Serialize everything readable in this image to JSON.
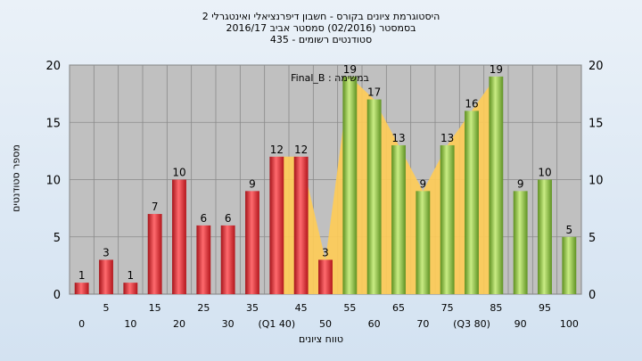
{
  "chart_data": {
    "type": "bar",
    "title_lines": [
      "היסטוגרמת ציונים בקורס - חשבון דיפרנציאלי ואינטגרלי 2",
      "בסמסטר  (02/2016)  סמסטר אביב 2016/17",
      "סטודנטים רשומים - 435"
    ],
    "xlabel": "טווח ציונים",
    "ylabel": "מספר סטודנטים",
    "annotation": "Final_B : במשימה",
    "ylim": [
      0,
      20
    ],
    "y_ticks": [
      "0",
      "5",
      "10",
      "15",
      "20"
    ],
    "categories": [
      "0",
      "5",
      "10",
      "15",
      "20",
      "25",
      "30",
      "35",
      "40",
      "45",
      "50",
      "55",
      "60",
      "65",
      "70",
      "75",
      "80",
      "85",
      "90",
      "95",
      "100"
    ],
    "x_tick_labels": [
      "0",
      "5",
      "10",
      "15",
      "20",
      "25",
      "30",
      "35",
      "(Q1 40)",
      "45",
      "50",
      "55",
      "60",
      "65",
      "70",
      "75",
      "(Q3 80)",
      "85",
      "90",
      "95",
      "100"
    ],
    "values": [
      1,
      3,
      1,
      7,
      10,
      6,
      6,
      9,
      12,
      12,
      3,
      19,
      17,
      13,
      9,
      13,
      16,
      19,
      9,
      10,
      5
    ],
    "value_labels": [
      "1",
      "3",
      "1",
      "7",
      "10",
      "6",
      "6",
      "9",
      "12",
      "12",
      "3",
      "19",
      "17",
      "13",
      "9",
      "13",
      "16",
      "19",
      "9",
      "10",
      "5"
    ],
    "pass_threshold": 55,
    "colors": {
      "fail": "#e0262b",
      "pass": "#8cc63f",
      "area": "#ffcc55",
      "plot_bg": "#c0c0c0",
      "grid": "#8a8a8a"
    }
  }
}
